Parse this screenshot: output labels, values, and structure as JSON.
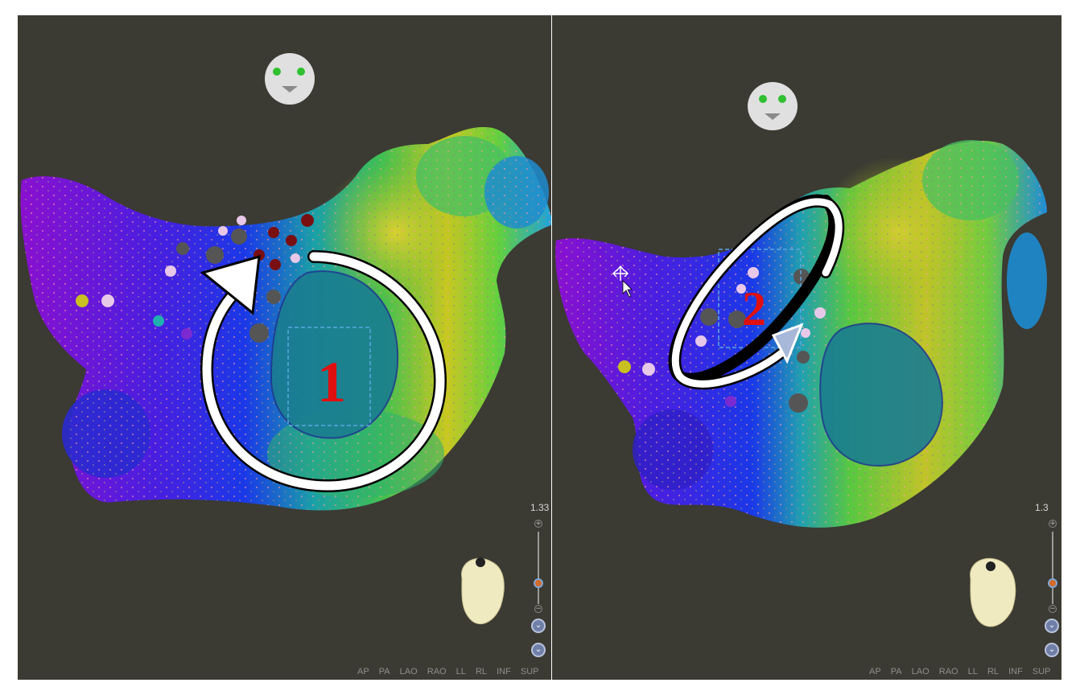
{
  "left_panel": {
    "map_label": "1",
    "zoom_value": "1.33",
    "zoom_plus": "+",
    "zoom_minus": "−",
    "nav_up": "⌄",
    "nav_down": "⌄",
    "views": [
      "AP",
      "PA",
      "LAO",
      "RAO",
      "LL",
      "RL",
      "INF",
      "SUP"
    ]
  },
  "right_panel": {
    "map_label": "2",
    "zoom_value": "1.3",
    "zoom_plus": "+",
    "zoom_minus": "−",
    "nav_up": "⌄",
    "nav_down": "⌄",
    "views": [
      "AP",
      "PA",
      "LAO",
      "RAO",
      "LL",
      "RL",
      "INF",
      "SUP"
    ]
  },
  "colors": {
    "background": "#3b3a33",
    "label_red": "#e01010",
    "arrow_white": "#ffffff",
    "selection_box": "#5aa8e0"
  },
  "icons": [
    "face-orientation-icon",
    "heart-model-icon",
    "move-cursor-icon"
  ]
}
